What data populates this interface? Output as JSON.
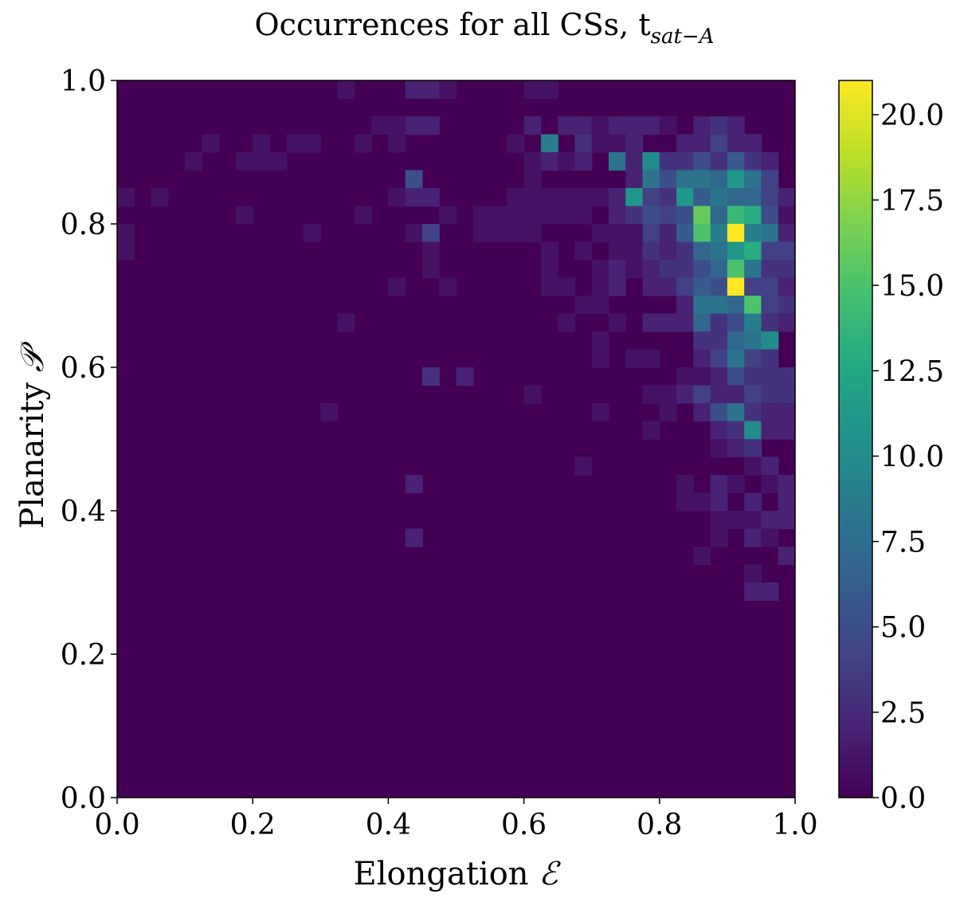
{
  "chart_data": {
    "type": "heatmap",
    "title": {
      "main": "Occurrences  for all CSs, t",
      "subscript": "sat−A"
    },
    "xlabel": {
      "text": "Elongation ",
      "symbol": "ℰ"
    },
    "ylabel": {
      "text": "Planarity ",
      "symbol": "𝒫"
    },
    "xlim": [
      0.0,
      1.0
    ],
    "ylim": [
      0.0,
      1.0
    ],
    "xticks": [
      "0.0",
      "0.2",
      "0.4",
      "0.6",
      "0.8",
      "1.0"
    ],
    "yticks": [
      "0.0",
      "0.2",
      "0.4",
      "0.6",
      "0.8",
      "1.0"
    ],
    "grid": false,
    "bins": 40,
    "colormap": "viridis",
    "colorbar": {
      "min": 0.0,
      "max": 21.0,
      "ticks": [
        "0.0",
        "2.5",
        "5.0",
        "7.5",
        "10.0",
        "12.5",
        "15.0",
        "17.5",
        "20.0"
      ]
    },
    "cells_note": "nonzero cells as [x_bin_start, y_bin_start, count]",
    "cells": [
      [
        0.0,
        0.825,
        1
      ],
      [
        0.0,
        0.775,
        1
      ],
      [
        0.0,
        0.75,
        1
      ],
      [
        0.05,
        0.825,
        1
      ],
      [
        0.1,
        0.875,
        1
      ],
      [
        0.125,
        0.9,
        1
      ],
      [
        0.175,
        0.875,
        1
      ],
      [
        0.2,
        0.875,
        1
      ],
      [
        0.2,
        0.9,
        1
      ],
      [
        0.225,
        0.875,
        1
      ],
      [
        0.25,
        0.9,
        1
      ],
      [
        0.275,
        0.9,
        1
      ],
      [
        0.175,
        0.8,
        1
      ],
      [
        0.275,
        0.775,
        1
      ],
      [
        0.325,
        0.975,
        1
      ],
      [
        0.325,
        0.65,
        1
      ],
      [
        0.3,
        0.525,
        1
      ],
      [
        0.35,
        0.9,
        1
      ],
      [
        0.35,
        0.8,
        1
      ],
      [
        0.375,
        0.925,
        1
      ],
      [
        0.4,
        0.925,
        1
      ],
      [
        0.4,
        0.9,
        1
      ],
      [
        0.4,
        0.825,
        1
      ],
      [
        0.4,
        0.7,
        1
      ],
      [
        0.425,
        0.975,
        2
      ],
      [
        0.425,
        0.925,
        2
      ],
      [
        0.425,
        0.85,
        5
      ],
      [
        0.425,
        0.825,
        2
      ],
      [
        0.425,
        0.775,
        1
      ],
      [
        0.425,
        0.425,
        2
      ],
      [
        0.425,
        0.35,
        2
      ],
      [
        0.45,
        0.975,
        2
      ],
      [
        0.45,
        0.925,
        2
      ],
      [
        0.45,
        0.825,
        2
      ],
      [
        0.45,
        0.775,
        4
      ],
      [
        0.45,
        0.75,
        1
      ],
      [
        0.45,
        0.725,
        1
      ],
      [
        0.45,
        0.575,
        3
      ],
      [
        0.475,
        0.975,
        1
      ],
      [
        0.475,
        0.8,
        1
      ],
      [
        0.475,
        0.7,
        1
      ],
      [
        0.5,
        0.575,
        2
      ],
      [
        0.525,
        0.8,
        1
      ],
      [
        0.525,
        0.775,
        1
      ],
      [
        0.55,
        0.8,
        1
      ],
      [
        0.55,
        0.775,
        1
      ],
      [
        0.575,
        0.9,
        1
      ],
      [
        0.575,
        0.825,
        1
      ],
      [
        0.575,
        0.8,
        1
      ],
      [
        0.575,
        0.775,
        1
      ],
      [
        0.6,
        0.975,
        1
      ],
      [
        0.6,
        0.925,
        2
      ],
      [
        0.6,
        0.875,
        1
      ],
      [
        0.6,
        0.85,
        1
      ],
      [
        0.6,
        0.825,
        1
      ],
      [
        0.6,
        0.8,
        1
      ],
      [
        0.6,
        0.775,
        1
      ],
      [
        0.6,
        0.55,
        1
      ],
      [
        0.625,
        0.975,
        1
      ],
      [
        0.625,
        0.9,
        9
      ],
      [
        0.625,
        0.875,
        2
      ],
      [
        0.625,
        0.825,
        1
      ],
      [
        0.625,
        0.8,
        1
      ],
      [
        0.625,
        0.75,
        1
      ],
      [
        0.625,
        0.725,
        1
      ],
      [
        0.625,
        0.7,
        1
      ],
      [
        0.65,
        0.925,
        2
      ],
      [
        0.65,
        0.875,
        1
      ],
      [
        0.65,
        0.825,
        1
      ],
      [
        0.65,
        0.8,
        1
      ],
      [
        0.65,
        0.7,
        1
      ],
      [
        0.65,
        0.65,
        1
      ],
      [
        0.675,
        0.925,
        2
      ],
      [
        0.675,
        0.9,
        3
      ],
      [
        0.675,
        0.875,
        2
      ],
      [
        0.675,
        0.825,
        1
      ],
      [
        0.675,
        0.8,
        1
      ],
      [
        0.675,
        0.75,
        1
      ],
      [
        0.675,
        0.675,
        1
      ],
      [
        0.675,
        0.45,
        1
      ],
      [
        0.7,
        0.925,
        1
      ],
      [
        0.7,
        0.9,
        1
      ],
      [
        0.7,
        0.825,
        1
      ],
      [
        0.7,
        0.775,
        1
      ],
      [
        0.7,
        0.725,
        1
      ],
      [
        0.7,
        0.7,
        1
      ],
      [
        0.7,
        0.675,
        1
      ],
      [
        0.7,
        0.625,
        1
      ],
      [
        0.7,
        0.6,
        1
      ],
      [
        0.7,
        0.525,
        1
      ],
      [
        0.725,
        0.925,
        2
      ],
      [
        0.725,
        0.9,
        1
      ],
      [
        0.725,
        0.875,
        8
      ],
      [
        0.725,
        0.825,
        2
      ],
      [
        0.725,
        0.8,
        2
      ],
      [
        0.725,
        0.775,
        1
      ],
      [
        0.725,
        0.75,
        1
      ],
      [
        0.725,
        0.725,
        2
      ],
      [
        0.725,
        0.7,
        2
      ],
      [
        0.725,
        0.65,
        1
      ],
      [
        0.75,
        0.925,
        2
      ],
      [
        0.75,
        0.9,
        2
      ],
      [
        0.75,
        0.875,
        2
      ],
      [
        0.75,
        0.85,
        2
      ],
      [
        0.75,
        0.825,
        11
      ],
      [
        0.75,
        0.8,
        3
      ],
      [
        0.75,
        0.775,
        1
      ],
      [
        0.75,
        0.75,
        1
      ],
      [
        0.75,
        0.725,
        1
      ],
      [
        0.75,
        0.6,
        1
      ],
      [
        0.775,
        0.925,
        2
      ],
      [
        0.775,
        0.875,
        10
      ],
      [
        0.775,
        0.85,
        8
      ],
      [
        0.775,
        0.825,
        4
      ],
      [
        0.775,
        0.8,
        5
      ],
      [
        0.775,
        0.775,
        4
      ],
      [
        0.775,
        0.75,
        3
      ],
      [
        0.775,
        0.725,
        2
      ],
      [
        0.775,
        0.7,
        2
      ],
      [
        0.775,
        0.65,
        2
      ],
      [
        0.775,
        0.6,
        1
      ],
      [
        0.775,
        0.55,
        1
      ],
      [
        0.775,
        0.5,
        1
      ],
      [
        0.8,
        0.925,
        1
      ],
      [
        0.8,
        0.875,
        3
      ],
      [
        0.8,
        0.85,
        5
      ],
      [
        0.8,
        0.825,
        3
      ],
      [
        0.8,
        0.8,
        4
      ],
      [
        0.8,
        0.775,
        2
      ],
      [
        0.8,
        0.75,
        2
      ],
      [
        0.8,
        0.725,
        3
      ],
      [
        0.8,
        0.7,
        2
      ],
      [
        0.8,
        0.65,
        2
      ],
      [
        0.8,
        0.55,
        1
      ],
      [
        0.8,
        0.525,
        1
      ],
      [
        0.825,
        0.9,
        2
      ],
      [
        0.825,
        0.875,
        3
      ],
      [
        0.825,
        0.85,
        8
      ],
      [
        0.825,
        0.825,
        11
      ],
      [
        0.825,
        0.8,
        5
      ],
      [
        0.825,
        0.775,
        6
      ],
      [
        0.825,
        0.75,
        3
      ],
      [
        0.825,
        0.725,
        3
      ],
      [
        0.825,
        0.7,
        4
      ],
      [
        0.825,
        0.675,
        2
      ],
      [
        0.825,
        0.65,
        2
      ],
      [
        0.825,
        0.575,
        1
      ],
      [
        0.825,
        0.55,
        2
      ],
      [
        0.825,
        0.425,
        1
      ],
      [
        0.825,
        0.4,
        1
      ],
      [
        0.85,
        0.925,
        2
      ],
      [
        0.85,
        0.9,
        2
      ],
      [
        0.85,
        0.875,
        5
      ],
      [
        0.85,
        0.85,
        8
      ],
      [
        0.85,
        0.825,
        6
      ],
      [
        0.85,
        0.8,
        16
      ],
      [
        0.85,
        0.775,
        15
      ],
      [
        0.85,
        0.75,
        7
      ],
      [
        0.85,
        0.725,
        5
      ],
      [
        0.85,
        0.7,
        6
      ],
      [
        0.85,
        0.675,
        8
      ],
      [
        0.85,
        0.65,
        7
      ],
      [
        0.85,
        0.625,
        3
      ],
      [
        0.85,
        0.6,
        2
      ],
      [
        0.85,
        0.575,
        1
      ],
      [
        0.85,
        0.55,
        4
      ],
      [
        0.85,
        0.525,
        2
      ],
      [
        0.85,
        0.4,
        1
      ],
      [
        0.85,
        0.325,
        1
      ],
      [
        0.875,
        0.925,
        3
      ],
      [
        0.875,
        0.9,
        4
      ],
      [
        0.875,
        0.875,
        3
      ],
      [
        0.875,
        0.85,
        7
      ],
      [
        0.875,
        0.825,
        8
      ],
      [
        0.875,
        0.8,
        7
      ],
      [
        0.875,
        0.775,
        9
      ],
      [
        0.875,
        0.75,
        8
      ],
      [
        0.875,
        0.725,
        7
      ],
      [
        0.875,
        0.7,
        5
      ],
      [
        0.875,
        0.675,
        8
      ],
      [
        0.875,
        0.65,
        3
      ],
      [
        0.875,
        0.625,
        3
      ],
      [
        0.875,
        0.6,
        4
      ],
      [
        0.875,
        0.575,
        2
      ],
      [
        0.875,
        0.55,
        2
      ],
      [
        0.875,
        0.525,
        5
      ],
      [
        0.875,
        0.5,
        2
      ],
      [
        0.875,
        0.475,
        1
      ],
      [
        0.875,
        0.425,
        2
      ],
      [
        0.875,
        0.4,
        2
      ],
      [
        0.875,
        0.375,
        1
      ],
      [
        0.875,
        0.35,
        1
      ],
      [
        0.9,
        0.925,
        2
      ],
      [
        0.9,
        0.9,
        2
      ],
      [
        0.9,
        0.875,
        6
      ],
      [
        0.9,
        0.85,
        11
      ],
      [
        0.9,
        0.825,
        7
      ],
      [
        0.9,
        0.8,
        14
      ],
      [
        0.9,
        0.775,
        21
      ],
      [
        0.9,
        0.75,
        11
      ],
      [
        0.9,
        0.725,
        15
      ],
      [
        0.9,
        0.7,
        21
      ],
      [
        0.9,
        0.675,
        7
      ],
      [
        0.9,
        0.65,
        5
      ],
      [
        0.9,
        0.625,
        7
      ],
      [
        0.9,
        0.6,
        8
      ],
      [
        0.9,
        0.575,
        5
      ],
      [
        0.9,
        0.55,
        2
      ],
      [
        0.9,
        0.525,
        8
      ],
      [
        0.9,
        0.5,
        3
      ],
      [
        0.9,
        0.475,
        2
      ],
      [
        0.9,
        0.425,
        1
      ],
      [
        0.9,
        0.375,
        1
      ],
      [
        0.925,
        0.9,
        2
      ],
      [
        0.925,
        0.875,
        3
      ],
      [
        0.925,
        0.85,
        8
      ],
      [
        0.925,
        0.825,
        7
      ],
      [
        0.925,
        0.8,
        13
      ],
      [
        0.925,
        0.775,
        9
      ],
      [
        0.925,
        0.75,
        13
      ],
      [
        0.925,
        0.725,
        8
      ],
      [
        0.925,
        0.7,
        4
      ],
      [
        0.925,
        0.675,
        15
      ],
      [
        0.925,
        0.65,
        9
      ],
      [
        0.925,
        0.625,
        8
      ],
      [
        0.925,
        0.6,
        4
      ],
      [
        0.925,
        0.575,
        3
      ],
      [
        0.925,
        0.55,
        4
      ],
      [
        0.925,
        0.525,
        3
      ],
      [
        0.925,
        0.5,
        10
      ],
      [
        0.925,
        0.475,
        3
      ],
      [
        0.925,
        0.45,
        1
      ],
      [
        0.925,
        0.4,
        2
      ],
      [
        0.925,
        0.375,
        1
      ],
      [
        0.925,
        0.35,
        2
      ],
      [
        0.925,
        0.3,
        1
      ],
      [
        0.925,
        0.275,
        2
      ],
      [
        0.95,
        0.875,
        2
      ],
      [
        0.95,
        0.85,
        4
      ],
      [
        0.95,
        0.825,
        4
      ],
      [
        0.95,
        0.8,
        5
      ],
      [
        0.95,
        0.775,
        8
      ],
      [
        0.95,
        0.75,
        4
      ],
      [
        0.95,
        0.725,
        3
      ],
      [
        0.95,
        0.7,
        4
      ],
      [
        0.95,
        0.675,
        4
      ],
      [
        0.95,
        0.65,
        3
      ],
      [
        0.95,
        0.625,
        10
      ],
      [
        0.95,
        0.6,
        3
      ],
      [
        0.95,
        0.575,
        3
      ],
      [
        0.95,
        0.55,
        3
      ],
      [
        0.95,
        0.525,
        2
      ],
      [
        0.95,
        0.5,
        2
      ],
      [
        0.95,
        0.45,
        2
      ],
      [
        0.95,
        0.425,
        1
      ],
      [
        0.95,
        0.375,
        2
      ],
      [
        0.95,
        0.35,
        1
      ],
      [
        0.95,
        0.275,
        2
      ],
      [
        0.975,
        0.825,
        2
      ],
      [
        0.975,
        0.8,
        1
      ],
      [
        0.975,
        0.775,
        2
      ],
      [
        0.975,
        0.75,
        4
      ],
      [
        0.975,
        0.725,
        3
      ],
      [
        0.975,
        0.7,
        2
      ],
      [
        0.975,
        0.675,
        3
      ],
      [
        0.975,
        0.65,
        2
      ],
      [
        0.975,
        0.575,
        3
      ],
      [
        0.975,
        0.55,
        3
      ],
      [
        0.975,
        0.525,
        2
      ],
      [
        0.975,
        0.5,
        2
      ],
      [
        0.975,
        0.425,
        2
      ],
      [
        0.975,
        0.4,
        2
      ],
      [
        0.975,
        0.375,
        2
      ],
      [
        0.975,
        0.325,
        2
      ]
    ]
  }
}
